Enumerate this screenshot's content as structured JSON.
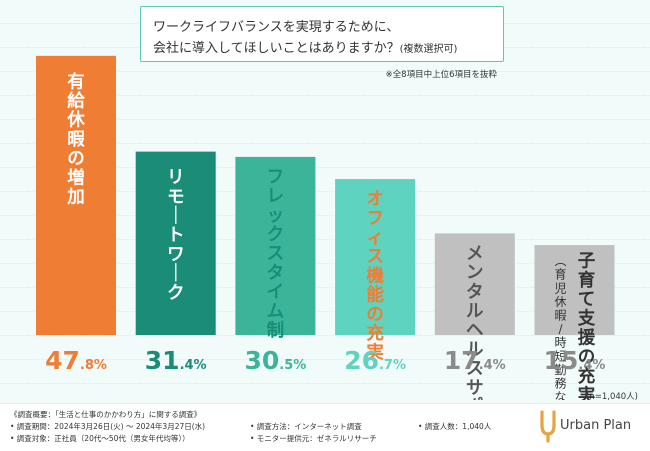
{
  "title": {
    "line1": "ワークライフバランスを実現するために、",
    "line2": "会社に導入してほしいことはありますか？",
    "line2_sub": "(複数選択可)"
  },
  "note": "※全8項目中上位6項目を抜粋",
  "chart_data": {
    "type": "bar",
    "title": "ワークライフバランスを実現するために、会社に導入してほしいことはありますか？(複数選択可)",
    "categories": [
      "有給休暇の増加",
      "リモートワーク",
      "フレックスタイム制",
      "オフィス機能の充実",
      "メンタルヘルスサポート",
      "子育て支援の充実"
    ],
    "category_notes": [
      "",
      "",
      "",
      "",
      "",
      "(育児休暇／時短勤務など)"
    ],
    "values": [
      47.8,
      31.4,
      30.5,
      26.7,
      17.4,
      15.4
    ],
    "value_labels": [
      {
        "int": "47",
        "dec": ".8%"
      },
      {
        "int": "31",
        "dec": ".4%"
      },
      {
        "int": "30",
        "dec": ".5%"
      },
      {
        "int": "26",
        "dec": ".7%"
      },
      {
        "int": "17",
        "dec": ".4%"
      },
      {
        "int": "15",
        "dec": ".4%"
      }
    ],
    "unit": "%",
    "ylim": [
      0,
      50
    ],
    "grid": false,
    "colors": {
      "bar": [
        "#f07d34",
        "#1b8c78",
        "#3bb59a",
        "#5ed3c0",
        "#c0c0c0",
        "#c0c0c0"
      ],
      "value_text": [
        "#f07d34",
        "#1b8c78",
        "#3bb59a",
        "#5ed3c0",
        "#8a8a8a",
        "#8a8a8a"
      ],
      "label_text": [
        "#ffffff",
        "#ffffff",
        "#1b8c78",
        "#f07d34",
        "#555555",
        "#333333"
      ]
    }
  },
  "sample": "(n=1,040人)",
  "footer": {
    "overview": "《調査概要：「生活と仕事のかかわり方」に関する調査》",
    "period": "• 調査期間：2024年3月26日(火) ～ 2024年3月27日(水)",
    "target": "• 調査対象：正社員（20代～50代（男女年代均等））",
    "method": "• 調査方法：インターネット調査",
    "provider": "• モニター提供元：ゼネラルリサーチ",
    "count": "• 調査人数：1,040人"
  },
  "logo": {
    "text": "Urban Plan",
    "color": "#e9a33c"
  }
}
